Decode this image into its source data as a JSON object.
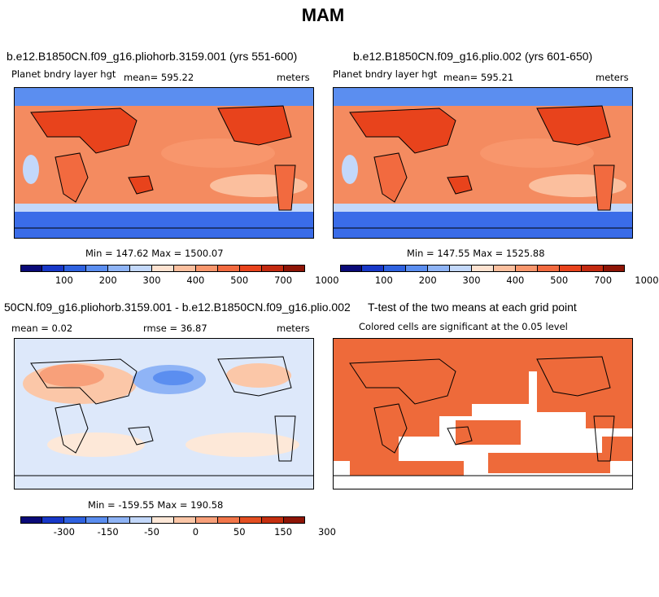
{
  "title": "MAM",
  "panels": [
    {
      "title": "b.e12.B1850CN.f09_g16.pliohorb.3159.001 (yrs 551-600)",
      "left_label": "Planet bndry layer hgt",
      "center_label": "mean= 595.22",
      "right_label": "meters",
      "min_max": "Min = 147.62 Max = 1500.07",
      "colorbar_ticks": [
        "100",
        "200",
        "300",
        "400",
        "500",
        "700",
        "1000"
      ]
    },
    {
      "title": "b.e12.B1850CN.f09_g16.plio.002 (yrs 601-650)",
      "left_label": "Planet bndry layer hgt",
      "center_label": "mean= 595.21",
      "right_label": "meters",
      "min_max": "Min = 147.55 Max = 1525.88",
      "colorbar_ticks": [
        "100",
        "200",
        "300",
        "400",
        "500",
        "700",
        "1000"
      ]
    },
    {
      "title": "50CN.f09_g16.pliohorb.3159.001 - b.e12.B1850CN.f09_g16.plio.002",
      "left_label": "mean =    0.02",
      "center_label": "rmse =   36.87",
      "right_label": "meters",
      "min_max": "Min = -159.55 Max = 190.58",
      "colorbar_ticks": [
        "-300",
        "-150",
        "-50",
        "0",
        "50",
        "150",
        "300"
      ]
    },
    {
      "title": "T-test of the two means at each grid point",
      "subtitle": "Colored cells are significant at the 0.05 level"
    }
  ],
  "colors": {
    "abs_palette": [
      "#0a0a78",
      "#1838c8",
      "#2f62e0",
      "#5b8ef0",
      "#8fb4f6",
      "#c3d8fa",
      "#fde2d0",
      "#fbbf9e",
      "#f8966c",
      "#f26a3f",
      "#e8431c",
      "#c32a10",
      "#8e1506"
    ],
    "diff_palette": [
      "#0a0a78",
      "#1838c8",
      "#2f62e0",
      "#5b8ef0",
      "#8fb4f6",
      "#c3d8fa",
      "#fde8d8",
      "#fbc7a8",
      "#f8a07a",
      "#f2764a",
      "#e44f22",
      "#c52f10",
      "#8e1506"
    ],
    "significant": "#ee6a3a"
  },
  "chart_data": [
    {
      "type": "heatmap",
      "title": "b.e12.B1850CN.f09_g16.pliohorb.3159.001 (yrs 551-600)",
      "variable": "Planet bndry layer hgt",
      "units": "meters",
      "mean": 595.22,
      "min": 147.62,
      "max": 1500.07,
      "levels": [
        100,
        200,
        300,
        400,
        500,
        700,
        1000
      ]
    },
    {
      "type": "heatmap",
      "title": "b.e12.B1850CN.f09_g16.plio.002 (yrs 601-650)",
      "variable": "Planet bndry layer hgt",
      "units": "meters",
      "mean": 595.21,
      "min": 147.55,
      "max": 1525.88,
      "levels": [
        100,
        200,
        300,
        400,
        500,
        700,
        1000
      ]
    },
    {
      "type": "heatmap",
      "title": "50CN.f09_g16.pliohorb.3159.001 - b.e12.B1850CN.f09_g16.plio.002",
      "units": "meters",
      "mean": 0.02,
      "rmse": 36.87,
      "min": -159.55,
      "max": 190.58,
      "levels": [
        -300,
        -150,
        -50,
        0,
        50,
        150,
        300
      ]
    },
    {
      "type": "heatmap",
      "title": "T-test of the two means at each grid point",
      "note": "Colored cells are significant at the 0.05 level"
    }
  ]
}
